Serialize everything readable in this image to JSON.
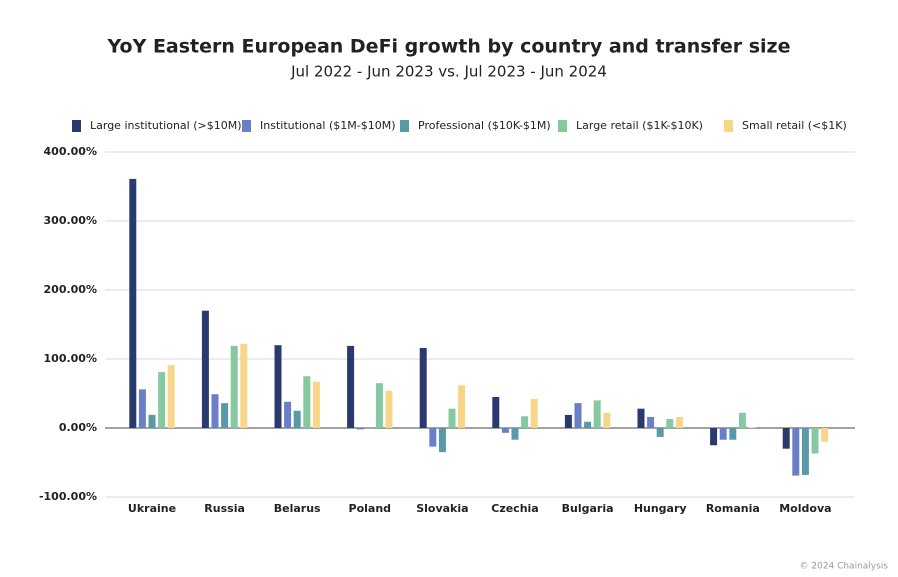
{
  "chart_data": {
    "type": "bar",
    "title": "YoY Eastern European DeFi growth by country and transfer size",
    "subtitle": "Jul 2022 - Jun 2023 vs. Jul 2023 - Jun 2024",
    "footer": "© 2024 Chainalysis",
    "categories": [
      "Ukraine",
      "Russia",
      "Belarus",
      "Poland",
      "Slovakia",
      "Czechia",
      "Bulgaria",
      "Hungary",
      "Romania",
      "Moldova"
    ],
    "series": [
      {
        "name": "Large institutional (>$10M)",
        "color": "#2b3a6e",
        "values": [
          361,
          170,
          120,
          119,
          116,
          45,
          19,
          28,
          -25,
          -30
        ]
      },
      {
        "name": "Institutional ($1M-$10M)",
        "color": "#6b7fc9",
        "values": [
          56,
          49,
          38,
          -2,
          -27,
          -7,
          36,
          16,
          -17,
          -69
        ]
      },
      {
        "name": "Professional ($10K-$1M)",
        "color": "#5a9aa8",
        "values": [
          19,
          36,
          25,
          -1,
          -35,
          -17,
          9,
          -13,
          -17,
          -68
        ]
      },
      {
        "name": "Large retail ($1K-$10K)",
        "color": "#86c9a0",
        "values": [
          81,
          119,
          75,
          65,
          28,
          17,
          40,
          13,
          22,
          -37
        ]
      },
      {
        "name": "Small retail (<$1K)",
        "color": "#f7d68a",
        "values": [
          91,
          122,
          67,
          54,
          62,
          42,
          22,
          16,
          1,
          -20
        ]
      }
    ],
    "ylim": [
      -100,
      400
    ],
    "yticks": [
      {
        "value": -100,
        "label": "-100.00%"
      },
      {
        "value": 0,
        "label": "0.00%"
      },
      {
        "value": 100,
        "label": "100.00%"
      },
      {
        "value": 200,
        "label": "200.00%"
      },
      {
        "value": 300,
        "label": "300.00%"
      },
      {
        "value": 400,
        "label": "400.00%"
      }
    ],
    "grid": true,
    "legend": "top"
  }
}
